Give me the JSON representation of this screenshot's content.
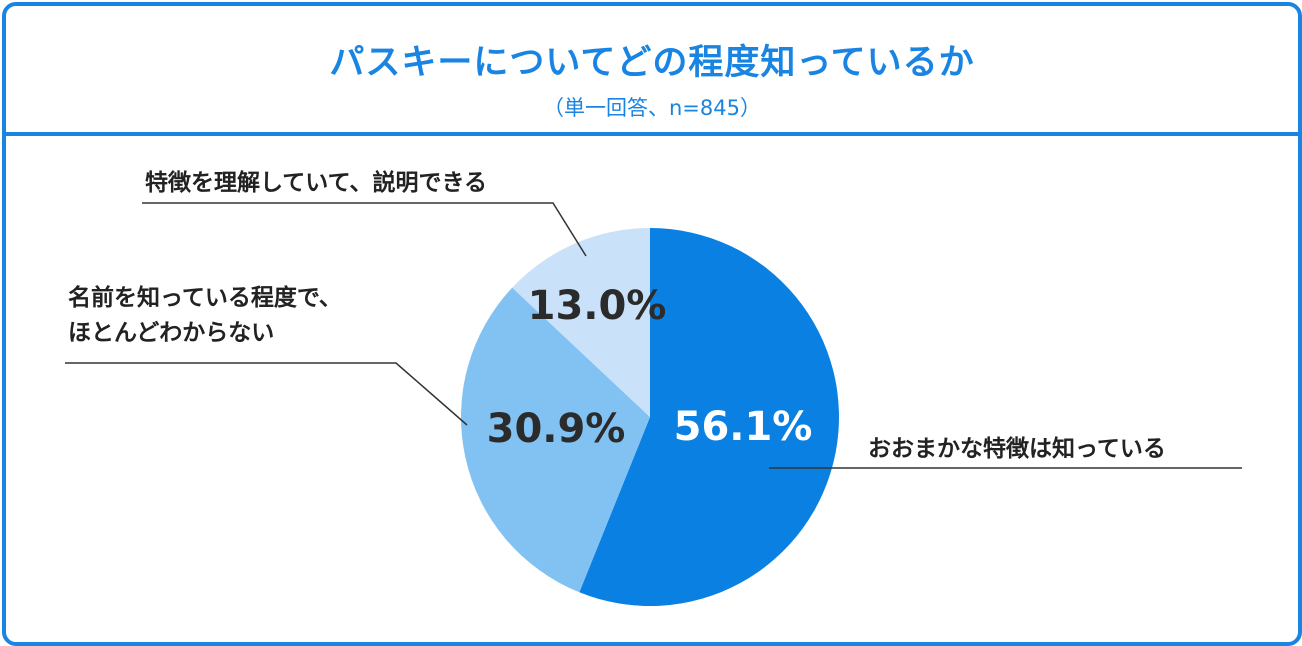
{
  "chart_data": {
    "type": "pie",
    "title": "パスキーについてどの程度知っているか",
    "subtitle": "（単一回答、n=845）",
    "slices": [
      {
        "label": "おおまかな特徴は知っている",
        "value": 56.1,
        "value_label": "56.1%",
        "color": "#0a80e2",
        "text_color": "#ffffff"
      },
      {
        "label_lines": [
          "名前を知っている程度で、",
          "ほとんどわからない"
        ],
        "value": 30.9,
        "value_label": "30.9%",
        "color": "#82c2f3",
        "text_color": "#2b2b2b"
      },
      {
        "label": "特徴を理解していて、説明できる",
        "value": 13.0,
        "value_label": "13.0%",
        "color": "#c9e2fa",
        "text_color": "#2b2b2b"
      }
    ],
    "start_angle": "12 o'clock",
    "direction": "clockwise",
    "legend": "none"
  },
  "colors": {
    "frame": "#1a84e2",
    "leader_line": "#333333"
  }
}
